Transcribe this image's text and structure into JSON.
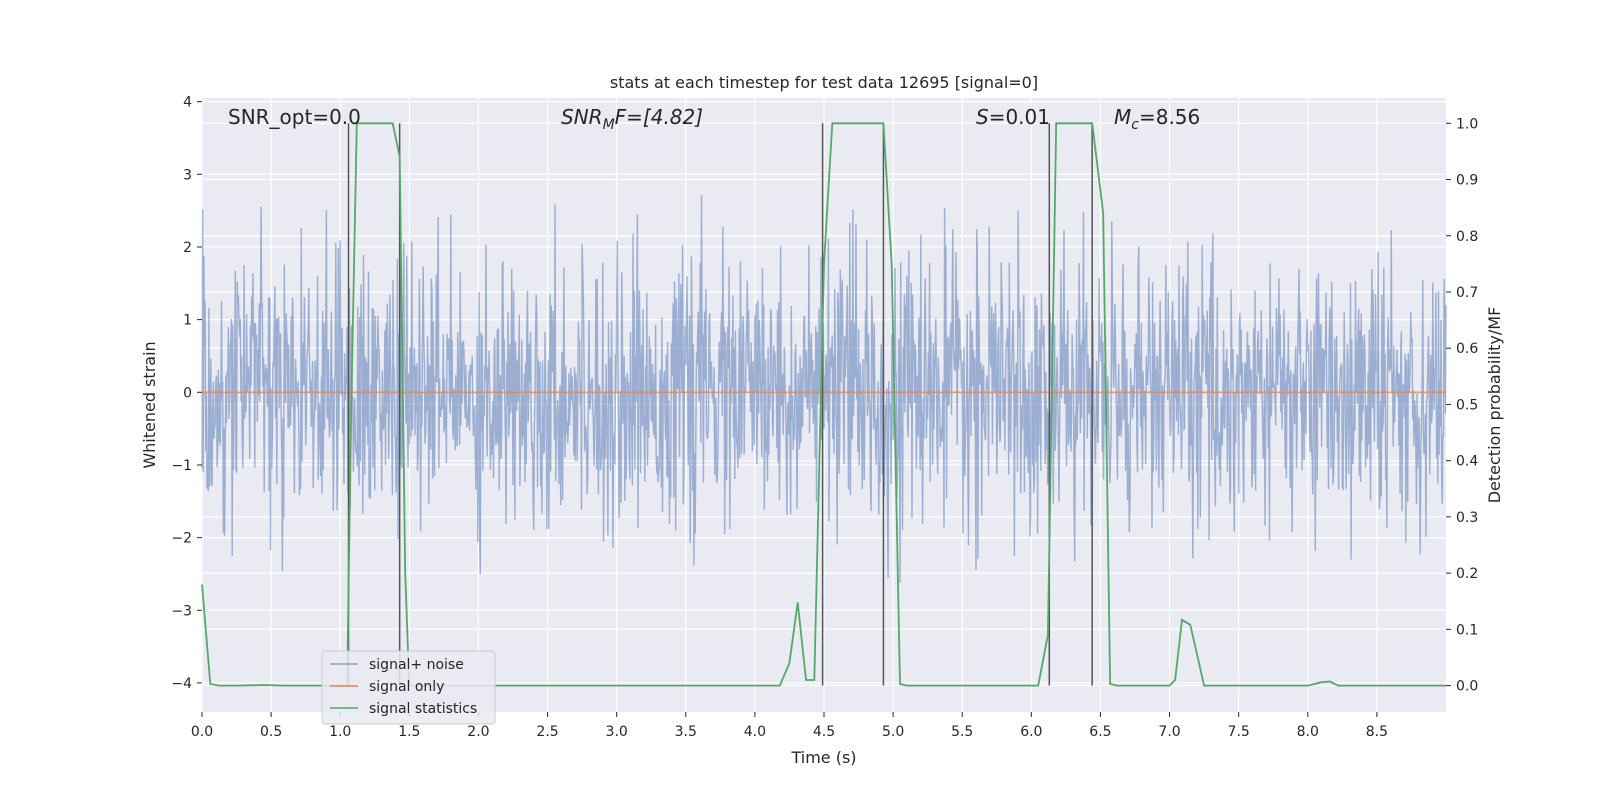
{
  "chart_data": {
    "type": "line",
    "title": "stats at each timestep for test data 12695 [signal=0]",
    "xlabel": "Time (s)",
    "ylabel": "Whitened strain",
    "y2label": "Detection probability/MF",
    "xlim": [
      0,
      9.0
    ],
    "ylim": [
      -4.4,
      4.05
    ],
    "y2lim": [
      -0.047,
      1.045
    ],
    "xticks": [
      0.0,
      0.5,
      1.0,
      1.5,
      2.0,
      2.5,
      3.0,
      3.5,
      4.0,
      4.5,
      5.0,
      5.5,
      6.0,
      6.5,
      7.0,
      7.5,
      8.0,
      8.5
    ],
    "xtick_labels": [
      "0.0",
      "0.5",
      "1.0",
      "1.5",
      "2.0",
      "2.5",
      "3.0",
      "3.5",
      "4.0",
      "4.5",
      "5.0",
      "5.5",
      "6.0",
      "6.5",
      "7.0",
      "7.5",
      "8.0",
      "8.5"
    ],
    "yticks": [
      4,
      3,
      2,
      1,
      0,
      -1,
      -2,
      -3,
      -4
    ],
    "ytick_labels": [
      "4",
      "3",
      "2",
      "1",
      "0",
      "−1",
      "−2",
      "−3",
      "−4"
    ],
    "y2ticks": [
      1.0,
      0.9,
      0.8,
      0.7,
      0.6,
      0.5,
      0.4,
      0.3,
      0.2,
      0.1,
      0.0
    ],
    "y2tick_labels": [
      "1.0",
      "0.9",
      "0.8",
      "0.7",
      "0.6",
      "0.5",
      "0.4",
      "0.3",
      "0.2",
      "0.1",
      "0.0"
    ],
    "grid": true,
    "legend_position": "lower-left",
    "annotations": {
      "snr_opt": "SNR_opt=0.0",
      "snr_mf_main": "SNR",
      "snr_mf_sub": "M",
      "snr_mf_rest": "F=[4.82]",
      "s_italic": "S",
      "s_rest": "=0.01",
      "mc_main": "M",
      "mc_sub": "c",
      "mc_rest": "=8.56"
    },
    "series": [
      {
        "name": "signal+ noise",
        "axis": "left",
        "color": "#4c72b0",
        "description_values": "noise envelope approx ±2 to ±3.5 whitened strain",
        "sample_rate_hz": 220,
        "amplitude_std": 0.9
      },
      {
        "name": "signal only",
        "axis": "left",
        "color": "#dd8452",
        "x": [
          0.0,
          9.0
        ],
        "y": [
          0.0,
          0.0
        ]
      },
      {
        "name": "signal statistics",
        "axis": "right",
        "color": "#55a868",
        "x": [
          0.0,
          0.06,
          0.12,
          0.25,
          0.45,
          0.6,
          0.8,
          1.0,
          1.05,
          1.08,
          1.12,
          1.2,
          1.38,
          1.43,
          1.47,
          1.5,
          1.55,
          2.0,
          3.0,
          4.0,
          4.18,
          4.25,
          4.31,
          4.37,
          4.43,
          4.5,
          4.56,
          4.62,
          4.93,
          4.99,
          5.05,
          5.1,
          5.5,
          6.0,
          6.05,
          6.12,
          6.18,
          6.25,
          6.44,
          6.52,
          6.57,
          6.62,
          7.0,
          7.04,
          7.09,
          7.15,
          7.25,
          7.5,
          8.0,
          8.1,
          8.16,
          8.22,
          8.5,
          9.0
        ],
        "y": [
          0.18,
          0.003,
          0.0,
          0.0,
          0.001,
          0.0,
          0.0,
          0.0,
          0.0,
          0.5,
          1.0,
          1.0,
          1.0,
          0.94,
          0.2,
          0.0,
          0.0,
          0.0,
          0.0,
          0.0,
          0.0,
          0.04,
          0.148,
          0.01,
          0.01,
          0.75,
          1.0,
          1.0,
          1.0,
          0.75,
          0.003,
          0.0,
          0.0,
          0.0,
          0.0,
          0.09,
          1.0,
          1.0,
          1.0,
          0.84,
          0.003,
          0.0,
          0.0,
          0.01,
          0.117,
          0.108,
          0.0,
          0.0,
          0.0,
          0.006,
          0.007,
          0.0,
          0.0,
          0.0
        ]
      }
    ],
    "vertical_lines_x": [
      1.06,
      1.43,
      4.49,
      4.93,
      6.13,
      6.44
    ],
    "vertical_lines_color": "#555555"
  }
}
